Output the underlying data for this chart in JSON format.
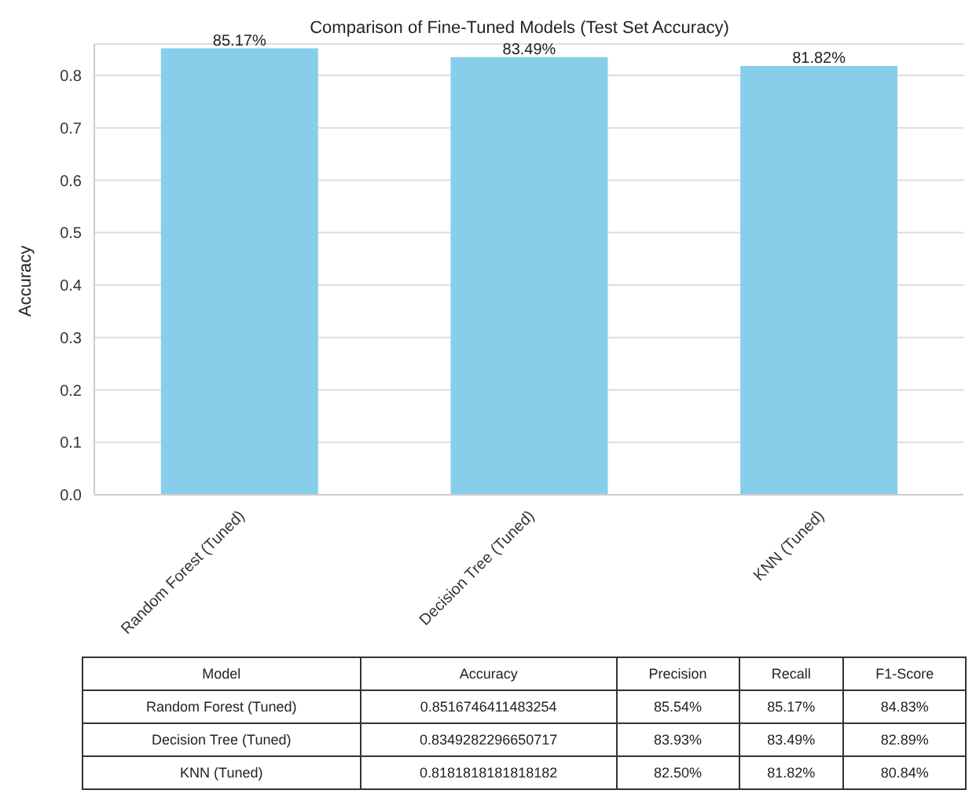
{
  "chart_data": [
    {
      "type": "bar",
      "title": "Comparison of Fine-Tuned Models (Test Set Accuracy)",
      "ylabel": "Accuracy",
      "categories": [
        "Random Forest (Tuned)",
        "Decision Tree (Tuned)",
        "KNN (Tuned)"
      ],
      "values": [
        0.8517,
        0.8349,
        0.8182
      ],
      "value_labels": [
        "85.17%",
        "83.49%",
        "81.82%"
      ],
      "color": "#87ceeb",
      "ylim": [
        0,
        0.86
      ],
      "yticks": [
        {
          "value": 0,
          "label": "0.0"
        },
        0.1,
        0.2,
        0.3,
        0.4,
        0.5,
        0.6,
        0.7,
        0.8
      ],
      "grid": "y"
    },
    {
      "type": "other",
      "categories": [
        "Model",
        "Accuracy",
        "Precision",
        "Recall",
        "F1-Score"
      ],
      "annotations": [
        "Random Forest (Tuned)",
        "0.8516746411483254",
        "85.54%",
        "85.17%",
        "84.83%",
        "Decision Tree (Tuned)",
        "0.8349282296650717",
        "83.93%",
        "83.49%",
        "82.89%",
        "KNN (Tuned)",
        "0.8181818181818182",
        "82.50%",
        "81.82%",
        "80.84%"
      ]
    }
  ]
}
